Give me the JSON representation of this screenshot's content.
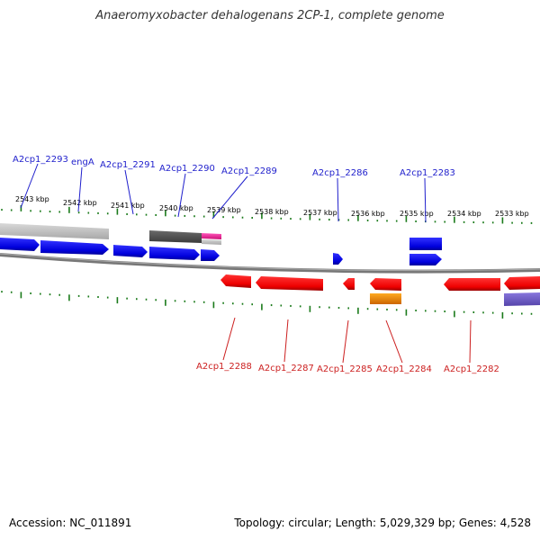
{
  "title": "Anaeromyxobacter dehalogenans 2CP-1, complete genome",
  "footer": {
    "accession": "Accession: NC_011891",
    "stats": "Topology: circular; Length: 5,029,329 bp; Genes: 4,528"
  },
  "colors": {
    "forward_gene": "#0000ee",
    "reverse_gene": "#ee0000",
    "forward_label": "#1f1fcc",
    "reverse_label": "#cc1f1f",
    "tick": "#1a7a1a",
    "backbone": "#777777",
    "light_gray_feature": "#c8c8c8",
    "dark_gray_feature": "#5a5a5a",
    "pink_feature": "#ee3399",
    "orange_feature": "#ee8800",
    "purple_feature": "#7766cc"
  },
  "kbp_labels": [
    "2543 kbp",
    "2542 kbp",
    "2541 kbp",
    "2540 kbp",
    "2539 kbp",
    "2538 kbp",
    "2537 kbp",
    "2536 kbp",
    "2535 kbp",
    "2534 kbp",
    "2533 kbp"
  ],
  "forward_labels": [
    "A2cp1_2293",
    "engA",
    "A2cp1_2291",
    "A2cp1_2290",
    "A2cp1_2289",
    "A2cp1_2286",
    "A2cp1_2283"
  ],
  "reverse_labels": [
    "A2cp1_2288",
    "A2cp1_2287",
    "A2cp1_2285",
    "A2cp1_2284",
    "A2cp1_2282"
  ]
}
